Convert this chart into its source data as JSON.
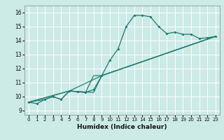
{
  "xlabel": "Humidex (Indice chaleur)",
  "bg_color": "#cceae6",
  "line_color": "#1d7a70",
  "grid_color": "#b8dcd8",
  "xlim": [
    -0.5,
    23.5
  ],
  "ylim": [
    8.7,
    16.5
  ],
  "xticks": [
    0,
    1,
    2,
    3,
    4,
    5,
    6,
    7,
    8,
    9,
    10,
    11,
    12,
    13,
    14,
    15,
    16,
    17,
    18,
    19,
    20,
    21,
    22,
    23
  ],
  "yticks": [
    9,
    10,
    11,
    12,
    13,
    14,
    15,
    16
  ],
  "main_line_x": [
    0,
    1,
    2,
    3,
    4,
    5,
    6,
    7,
    8,
    9,
    10,
    11,
    12,
    13,
    14,
    15,
    16,
    17,
    18,
    19,
    20,
    21,
    22,
    23
  ],
  "main_line_y": [
    9.6,
    9.5,
    9.8,
    10.0,
    9.8,
    10.4,
    10.35,
    10.3,
    10.5,
    11.5,
    12.6,
    13.4,
    15.0,
    15.8,
    15.8,
    15.7,
    15.0,
    14.5,
    14.6,
    14.45,
    14.45,
    14.15,
    14.2,
    14.3
  ],
  "line2_x": [
    0,
    2,
    3,
    4,
    5,
    6,
    7,
    8,
    9,
    23
  ],
  "line2_y": [
    9.6,
    9.8,
    10.0,
    9.8,
    10.4,
    10.35,
    10.3,
    11.5,
    11.5,
    14.3
  ],
  "line3_x": [
    0,
    5,
    9,
    23
  ],
  "line3_y": [
    9.6,
    10.4,
    11.5,
    14.3
  ],
  "line4_x": [
    0,
    5,
    8,
    9,
    23
  ],
  "line4_y": [
    9.6,
    10.4,
    10.3,
    11.5,
    14.3
  ]
}
